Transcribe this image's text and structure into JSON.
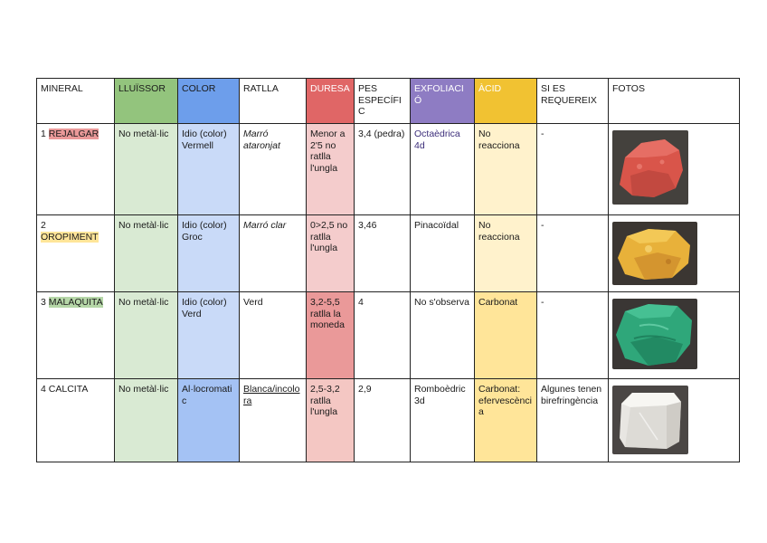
{
  "headers": [
    "MINERAL",
    "LLUÏSSOR",
    "COLOR",
    "RATLLA",
    "DURESA",
    "PES ESPECÍFIC",
    "EXFOLIACIÓ",
    "ÀCID",
    "SI ES REQUEREIX",
    "FOTOS"
  ],
  "rows": [
    {
      "num": "1",
      "name": "REJALGAR",
      "lluissor": "No metàl·lic",
      "color": "Idio (color) Vermell",
      "ratlla": "Marró ataronjat",
      "duresa": "Menor a 2'5 no ratlla l'ungla",
      "pes": "3,4 (pedra)",
      "exfoliacio": "Octaèdrica 4d",
      "acid": "No reacciona",
      "extra": "-",
      "photo": "red-orange-rock"
    },
    {
      "num": "2",
      "name": "OROPIMENT",
      "lluissor": "No metàl·lic",
      "color": "Idio (color) Groc",
      "ratlla": "Marró clar",
      "duresa": "0>2,5 no ratlla l'ungla",
      "pes": "3,46",
      "exfoliacio": "Pinacoïdal",
      "acid": "No reacciona",
      "extra": "-",
      "photo": "yellow-rock"
    },
    {
      "num": "3",
      "name": "MALAQUITA",
      "lluissor": "No metàl·lic",
      "color": "Idio (color) Verd",
      "ratlla": "Verd",
      "duresa": "3,2-5,5 ratlla la moneda",
      "pes": "4",
      "exfoliacio": "No s'observa",
      "acid": "Carbonat",
      "extra": "-",
      "photo": "green-rock"
    },
    {
      "num": "4",
      "name": "CALCITA",
      "lluissor": "No metàl·lic",
      "color": "Al·locromatic",
      "ratlla": "Blanca/incolora",
      "duresa": "2,5-3,2 ratlla l'ungla",
      "pes": "2,9",
      "exfoliacio": "Romboèdric 3d",
      "acid": "Carbonat: efervescència",
      "extra": "Algunes tenen birefringència",
      "photo": "clear-crystal"
    }
  ],
  "colors": {
    "lluissor": "#93c47d",
    "color": "#6d9eeb",
    "duresa": "#e06666",
    "exfoliacio": "#8e7cc3",
    "acid": "#f1c232"
  }
}
